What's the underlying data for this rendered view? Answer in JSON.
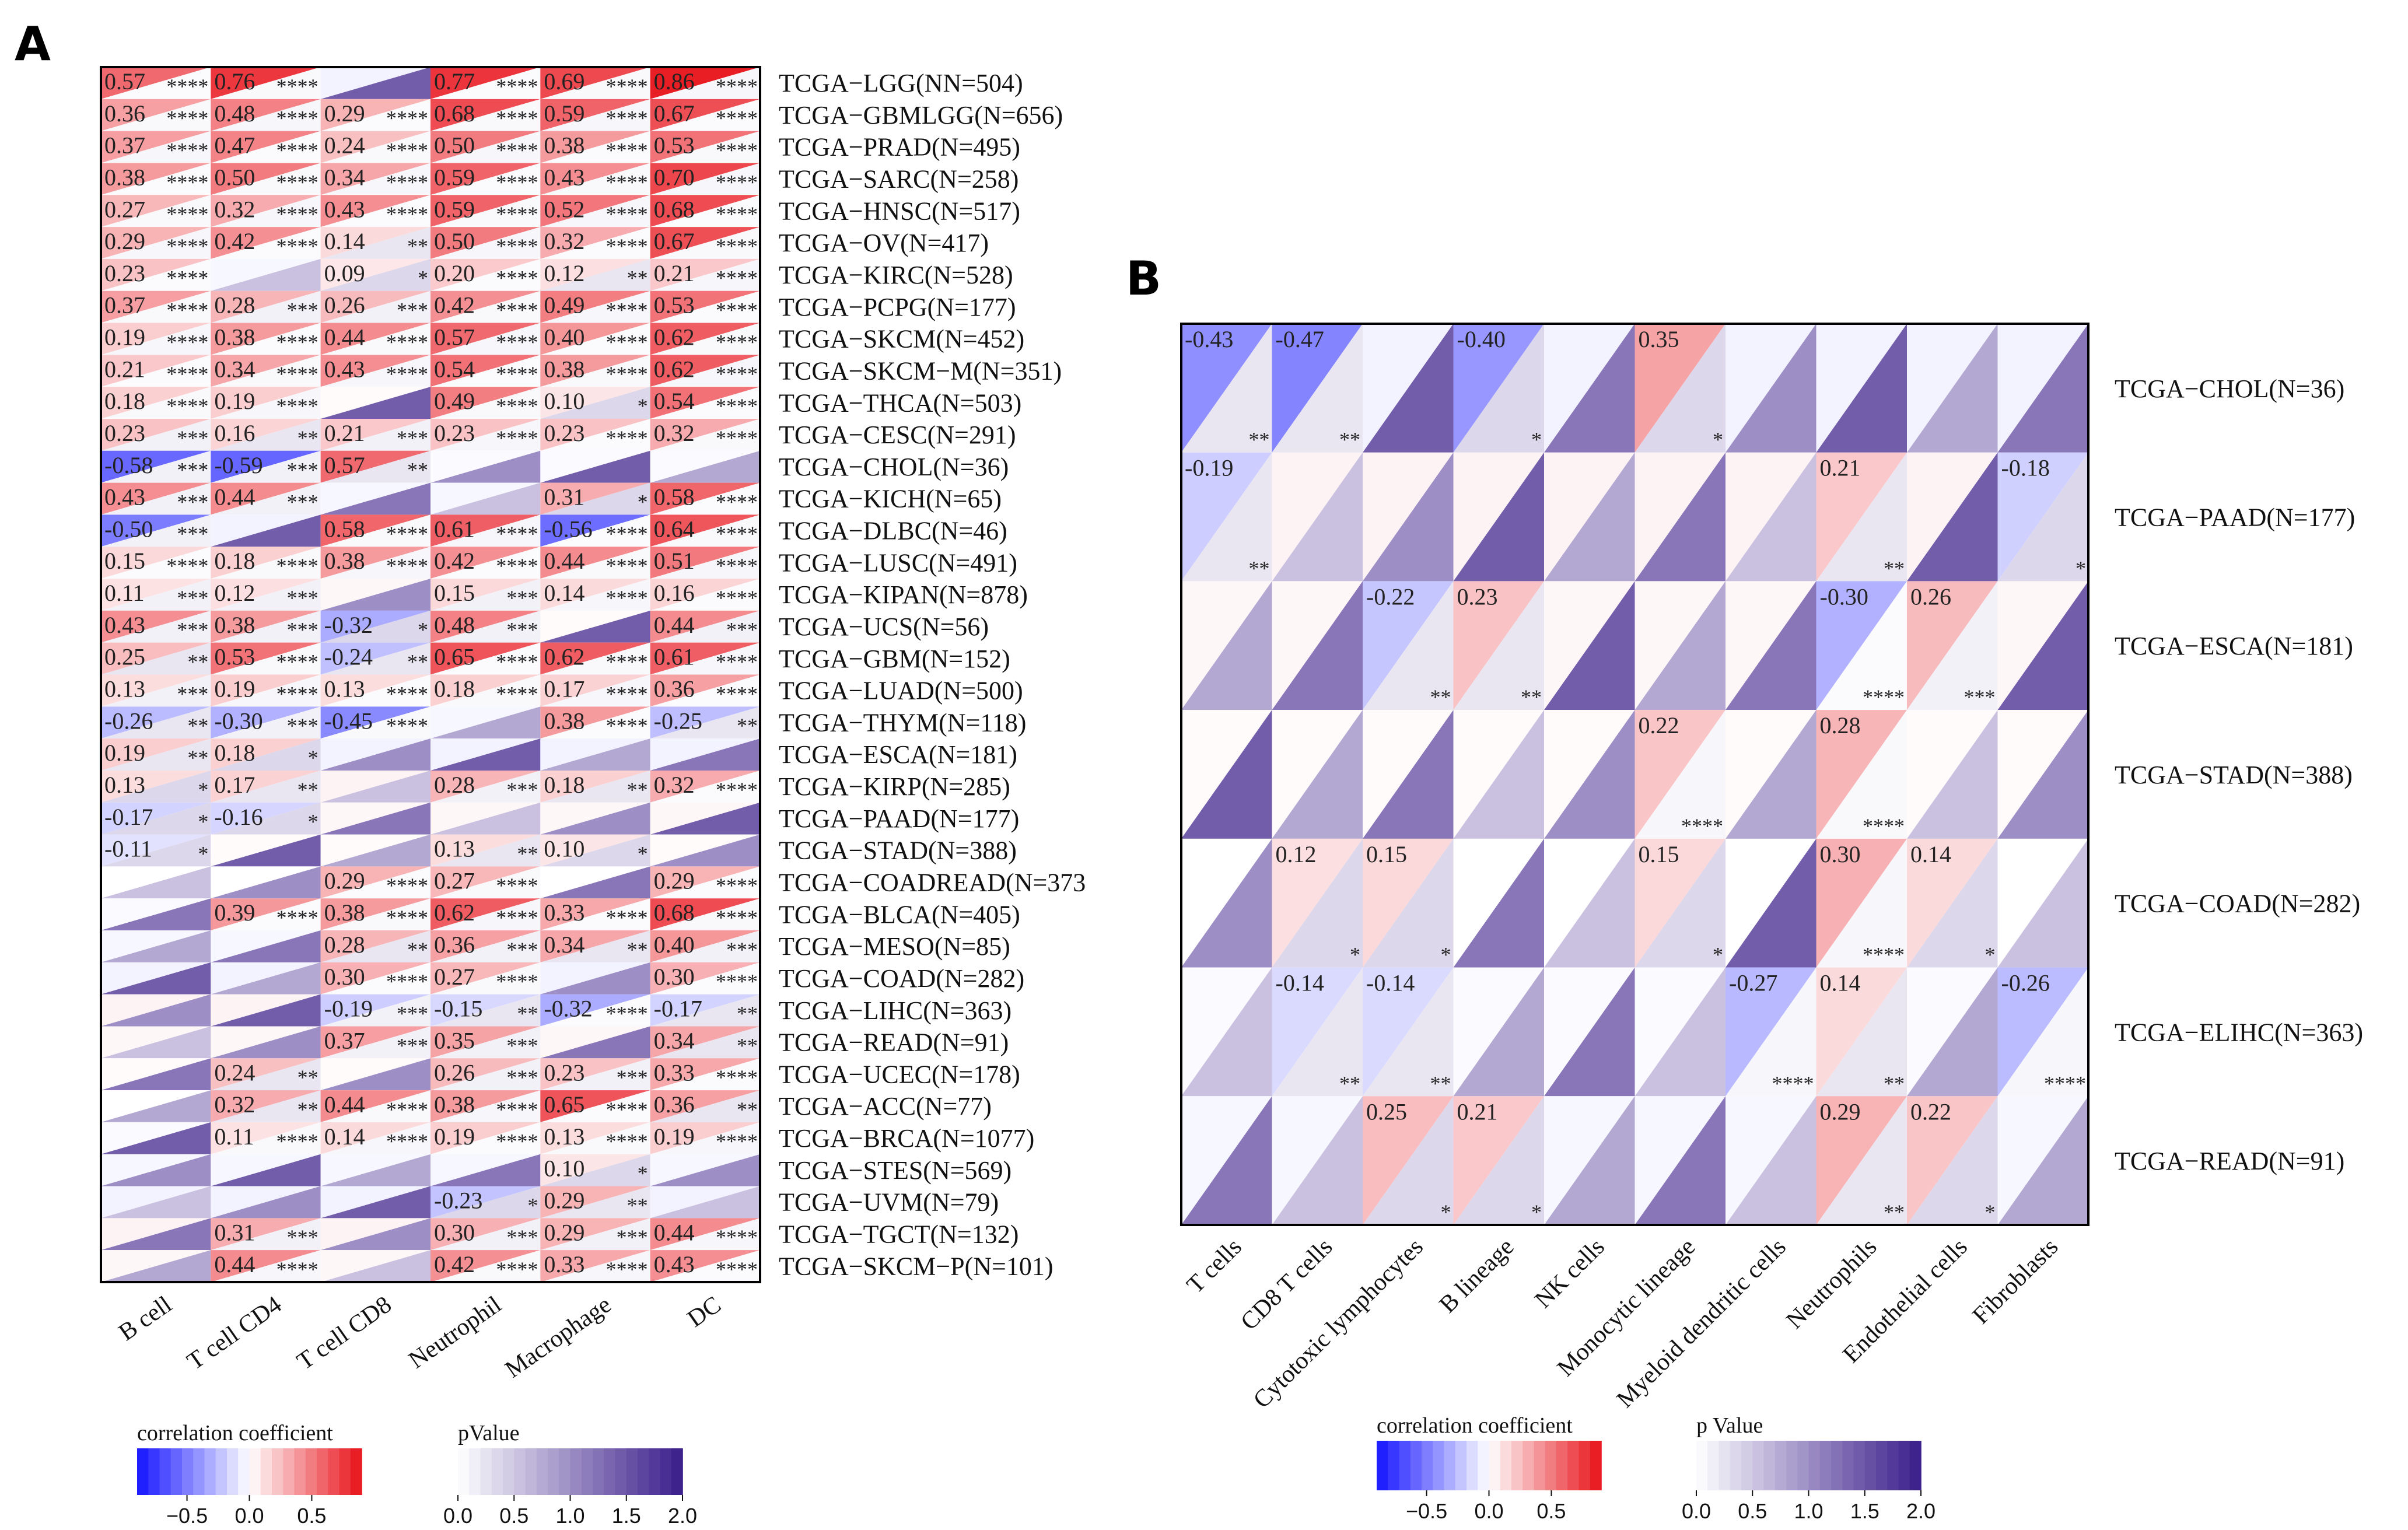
{
  "colors": {
    "neg": "#1414ff",
    "mid": "#ffffff",
    "pos": "#e8121a",
    "pval_low": "#ffffff",
    "pval_high": "#3a1d8a",
    "border": "#000000"
  },
  "chart_data": [
    {
      "panel": "A",
      "type": "heatmap",
      "columns": [
        "B cell",
        "T cell CD4",
        "T cell CD8",
        "Neutrophil",
        "Macrophage",
        "DC"
      ],
      "rows": [
        "TCGA−LGG(NN=504)",
        "TCGA−GBMLGG(N=656)",
        "TCGA−PRAD(N=495)",
        "TCGA−SARC(N=258)",
        "TCGA−HNSC(N=517)",
        "TCGA−OV(N=417)",
        "TCGA−KIRC(N=528)",
        "TCGA−PCPG(N=177)",
        "TCGA−SKCM(N=452)",
        "TCGA−SKCM−M(N=351)",
        "TCGA−THCA(N=503)",
        "TCGA−CESC(N=291)",
        "TCGA−CHOL(N=36)",
        "TCGA−KICH(N=65)",
        "TCGA−DLBC(N=46)",
        "TCGA−LUSC(N=491)",
        "TCGA−KIPAN(N=878)",
        "TCGA−UCS(N=56)",
        "TCGA−GBM(N=152)",
        "TCGA−LUAD(N=500)",
        "TCGA−THYM(N=118)",
        "TCGA−ESCA(N=181)",
        "TCGA−KIRP(N=285)",
        "TCGA−PAAD(N=177)",
        "TCGA−STAD(N=388)",
        "TCGA−COADREAD(N=373",
        "TCGA−BLCA(N=405)",
        "TCGA−MESO(N=85)",
        "TCGA−COAD(N=282)",
        "TCGA−LIHC(N=363)",
        "TCGA−READ(N=91)",
        "TCGA−UCEC(N=178)",
        "TCGA−ACC(N=77)",
        "TCGA−BRCA(N=1077)",
        "TCGA−STES(N=569)",
        "TCGA−UVM(N=79)",
        "TCGA−TGCT(N=132)",
        "TCGA−SKCM−P(N=101)"
      ],
      "values": [
        [
          "0.57",
          "0.76",
          "",
          "0.77",
          "0.69",
          "0.86"
        ],
        [
          "0.36",
          "0.48",
          "0.29",
          "0.68",
          "0.59",
          "0.67"
        ],
        [
          "0.37",
          "0.47",
          "0.24",
          "0.50",
          "0.38",
          "0.53"
        ],
        [
          "0.38",
          "0.50",
          "0.34",
          "0.59",
          "0.43",
          "0.70"
        ],
        [
          "0.27",
          "0.32",
          "0.43",
          "0.59",
          "0.52",
          "0.68"
        ],
        [
          "0.29",
          "0.42",
          "0.14",
          "0.50",
          "0.32",
          "0.67"
        ],
        [
          "0.23",
          "",
          "0.09",
          "0.20",
          "0.12",
          "0.21"
        ],
        [
          "0.37",
          "0.28",
          "0.26",
          "0.42",
          "0.49",
          "0.53"
        ],
        [
          "0.19",
          "0.38",
          "0.44",
          "0.57",
          "0.40",
          "0.62"
        ],
        [
          "0.21",
          "0.34",
          "0.43",
          "0.54",
          "0.38",
          "0.62"
        ],
        [
          "0.18",
          "0.19",
          "",
          "0.49",
          "0.10",
          "0.54"
        ],
        [
          "0.23",
          "0.16",
          "0.21",
          "0.23",
          "0.23",
          "0.32"
        ],
        [
          "-0.58",
          "-0.59",
          "0.57",
          "",
          "",
          ""
        ],
        [
          "0.43",
          "0.44",
          "",
          "",
          "0.31",
          "0.58"
        ],
        [
          "-0.50",
          "",
          "0.58",
          "0.61",
          "-0.56",
          "0.64"
        ],
        [
          "0.15",
          "0.18",
          "0.38",
          "0.42",
          "0.44",
          "0.51"
        ],
        [
          "0.11",
          "0.12",
          "",
          "0.15",
          "0.14",
          "0.16"
        ],
        [
          "0.43",
          "0.38",
          "-0.32",
          "0.48",
          "",
          "0.44"
        ],
        [
          "0.25",
          "0.53",
          "-0.24",
          "0.65",
          "0.62",
          "0.61"
        ],
        [
          "0.13",
          "0.19",
          "0.13",
          "0.18",
          "0.17",
          "0.36"
        ],
        [
          "-0.26",
          "-0.30",
          "-0.45",
          "",
          "0.38",
          "-0.25"
        ],
        [
          "0.19",
          "0.18",
          "",
          "",
          "",
          ""
        ],
        [
          "0.13",
          "0.17",
          "",
          "0.28",
          "0.18",
          "0.32"
        ],
        [
          "-0.17",
          "-0.16",
          "",
          "",
          "",
          ""
        ],
        [
          "-0.11",
          "",
          "",
          "0.13",
          "0.10",
          ""
        ],
        [
          "",
          "",
          "0.29",
          "0.27",
          "",
          "0.29"
        ],
        [
          "",
          "0.39",
          "0.38",
          "0.62",
          "0.33",
          "0.68"
        ],
        [
          "",
          "",
          "0.28",
          "0.36",
          "0.34",
          "0.40"
        ],
        [
          "",
          "",
          "0.30",
          "0.27",
          "",
          "0.30"
        ],
        [
          "",
          "",
          "-0.19",
          "-0.15",
          "-0.32",
          "-0.17"
        ],
        [
          "",
          "",
          "0.37",
          "0.35",
          "",
          "0.34"
        ],
        [
          "",
          "0.24",
          "",
          "0.26",
          "0.23",
          "0.33"
        ],
        [
          "",
          "0.32",
          "0.44",
          "0.38",
          "0.65",
          "0.36"
        ],
        [
          "",
          "0.11",
          "0.14",
          "0.19",
          "0.13",
          "0.19"
        ],
        [
          "",
          "",
          "",
          "",
          "0.10",
          ""
        ],
        [
          "",
          "",
          "",
          "-0.23",
          "0.29",
          ""
        ],
        [
          "",
          "0.31",
          "",
          "0.30",
          "0.29",
          "0.44"
        ],
        [
          "",
          "0.44",
          "",
          "0.42",
          "0.33",
          "0.43"
        ]
      ],
      "stars": [
        [
          "****",
          "****",
          "",
          "****",
          "****",
          "****"
        ],
        [
          "****",
          "****",
          "****",
          "****",
          "****",
          "****"
        ],
        [
          "****",
          "****",
          "****",
          "****",
          "****",
          "****"
        ],
        [
          "****",
          "****",
          "****",
          "****",
          "****",
          "****"
        ],
        [
          "****",
          "****",
          "****",
          "****",
          "****",
          "****"
        ],
        [
          "****",
          "****",
          "**",
          "****",
          "****",
          "****"
        ],
        [
          "****",
          "",
          "*",
          "****",
          "**",
          "****"
        ],
        [
          "****",
          "***",
          "***",
          "****",
          "****",
          "****"
        ],
        [
          "****",
          "****",
          "****",
          "****",
          "****",
          "****"
        ],
        [
          "****",
          "****",
          "****",
          "****",
          "****",
          "****"
        ],
        [
          "****",
          "****",
          "",
          "****",
          "*",
          "****"
        ],
        [
          "***",
          "**",
          "***",
          "****",
          "****",
          "****"
        ],
        [
          "***",
          "***",
          "**",
          "",
          "",
          ""
        ],
        [
          "***",
          "***",
          "",
          "",
          "*",
          "****"
        ],
        [
          "***",
          "",
          "****",
          "****",
          "****",
          "****"
        ],
        [
          "****",
          "****",
          "****",
          "****",
          "****",
          "****"
        ],
        [
          "***",
          "***",
          "",
          "***",
          "****",
          "****"
        ],
        [
          "***",
          "***",
          "*",
          "***",
          "",
          "***"
        ],
        [
          "**",
          "****",
          "**",
          "****",
          "****",
          "****"
        ],
        [
          "***",
          "****",
          "****",
          "****",
          "****",
          "****"
        ],
        [
          "**",
          "***",
          "****",
          "",
          "****",
          "**"
        ],
        [
          "**",
          "*",
          "",
          "",
          "",
          ""
        ],
        [
          "*",
          "**",
          "",
          "***",
          "**",
          "****"
        ],
        [
          "*",
          "*",
          "",
          "",
          "",
          ""
        ],
        [
          "*",
          "",
          "",
          "**",
          "*",
          ""
        ],
        [
          "",
          "",
          "****",
          "****",
          "",
          "****"
        ],
        [
          "",
          "****",
          "****",
          "****",
          "****",
          "****"
        ],
        [
          "",
          "",
          "**",
          "***",
          "**",
          "***"
        ],
        [
          "",
          "",
          "****",
          "****",
          "",
          "****"
        ],
        [
          "",
          "",
          "***",
          "**",
          "****",
          "**"
        ],
        [
          "",
          "",
          "***",
          "***",
          "",
          "**"
        ],
        [
          "",
          "**",
          "",
          "***",
          "***",
          "****"
        ],
        [
          "",
          "**",
          "****",
          "****",
          "****",
          "**"
        ],
        [
          "",
          "****",
          "****",
          "****",
          "****",
          "****"
        ],
        [
          "",
          "",
          "",
          "",
          "*",
          ""
        ],
        [
          "",
          "",
          "",
          "*",
          "**",
          ""
        ],
        [
          "",
          "***",
          "",
          "***",
          "***",
          "****"
        ],
        [
          "",
          "****",
          "",
          "****",
          "****",
          "****"
        ]
      ]
    },
    {
      "panel": "B",
      "type": "heatmap",
      "columns": [
        "T cells",
        "CD8 T cells",
        "Cytotoxic lymphocytes",
        "B lineage",
        "NK cells",
        "Monocytic lineage",
        "Myeloid dendritic cells",
        "Neutrophils",
        "Endothelial cells",
        "Fibroblasts"
      ],
      "rows": [
        "TCGA−CHOL(N=36)",
        "TCGA−PAAD(N=177)",
        "TCGA−ESCA(N=181)",
        "TCGA−STAD(N=388)",
        "TCGA−COAD(N=282)",
        "TCGA−ELIHC(N=363)",
        "TCGA−READ(N=91)"
      ],
      "values": [
        [
          "-0.43",
          "-0.47",
          "",
          "-0.40",
          "",
          "0.35",
          "",
          "",
          "",
          ""
        ],
        [
          "-0.19",
          "",
          "",
          "",
          "",
          "",
          "",
          "0.21",
          "",
          "-0.18"
        ],
        [
          "",
          "",
          "-0.22",
          "0.23",
          "",
          "",
          "",
          "-0.30",
          "0.26",
          ""
        ],
        [
          "",
          "",
          "",
          "",
          "",
          "0.22",
          "",
          "0.28",
          "",
          ""
        ],
        [
          "",
          "0.12",
          "0.15",
          "",
          "",
          "0.15",
          "",
          "0.30",
          "0.14",
          ""
        ],
        [
          "",
          "-0.14",
          "-0.14",
          "",
          "",
          "",
          "-0.27",
          "0.14",
          "",
          "-0.26"
        ],
        [
          "",
          "",
          "0.25",
          "0.21",
          "",
          "",
          "",
          "0.29",
          "0.22",
          ""
        ]
      ],
      "stars": [
        [
          "**",
          "**",
          "",
          "*",
          "",
          "*",
          "",
          "",
          "",
          ""
        ],
        [
          "**",
          "",
          "",
          "",
          "",
          "",
          "",
          "**",
          "",
          "*"
        ],
        [
          "",
          "",
          "**",
          "**",
          "",
          "",
          "",
          "****",
          "***",
          ""
        ],
        [
          "",
          "",
          "",
          "",
          "",
          "****",
          "",
          "****",
          "",
          ""
        ],
        [
          "",
          "*",
          "*",
          "",
          "",
          "*",
          "",
          "****",
          "*",
          ""
        ],
        [
          "",
          "**",
          "**",
          "",
          "",
          "",
          "****",
          "**",
          "",
          "****"
        ],
        [
          "",
          "",
          "*",
          "*",
          "",
          "",
          "",
          "**",
          "*",
          ""
        ]
      ]
    }
  ],
  "legend_a": {
    "corr_title": "correlation coefficient",
    "corr_ticks": [
      "−0.5",
      "0.0",
      "0.5"
    ],
    "p_title": "pValue",
    "p_ticks": [
      "0.0",
      "0.5",
      "1.0",
      "1.5",
      "2.0"
    ]
  },
  "legend_b": {
    "corr_title": "correlation coefficient",
    "corr_ticks": [
      "−0.5",
      "0.0",
      "0.5"
    ],
    "p_title": "p Value",
    "p_ticks": [
      "0.0",
      "0.5",
      "1.0",
      "1.5",
      "2.0"
    ]
  },
  "labels": {
    "panel_a": "A",
    "panel_b": "B"
  }
}
